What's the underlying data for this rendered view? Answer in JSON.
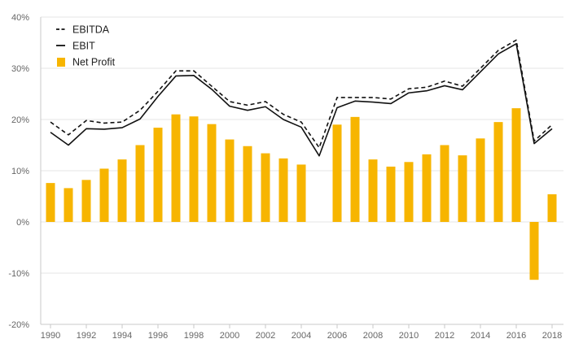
{
  "chart_data": {
    "type": "bar",
    "x": [
      1990,
      1991,
      1992,
      1993,
      1994,
      1995,
      1996,
      1997,
      1998,
      1999,
      2000,
      2001,
      2002,
      2003,
      2004,
      2005,
      2006,
      2007,
      2008,
      2009,
      2010,
      2011,
      2012,
      2013,
      2014,
      2015,
      2016,
      2017,
      2018
    ],
    "x_tick_labels": [
      "1990",
      "1992",
      "1994",
      "1996",
      "1998",
      "2000",
      "2002",
      "2004",
      "2006",
      "2008",
      "2010",
      "2012",
      "2014",
      "2016",
      "2018"
    ],
    "y_tick_labels": [
      "40%",
      "30%",
      "20%",
      "10%",
      "0%",
      "-10%",
      "-20%"
    ],
    "ylim": [
      -20,
      40
    ],
    "y_unit": "%",
    "grid": true,
    "legend_position": "top-left",
    "series": [
      {
        "name": "EBITDA",
        "type": "line",
        "style": "dashed",
        "color": "#111111",
        "values": [
          19.5,
          17.0,
          19.8,
          19.3,
          19.5,
          21.8,
          25.5,
          29.5,
          29.5,
          26.5,
          23.5,
          22.8,
          23.5,
          21.0,
          19.5,
          14.5,
          24.3,
          24.3,
          24.3,
          24.0,
          26.0,
          26.3,
          27.5,
          26.5,
          30.0,
          33.5,
          35.5,
          15.8,
          19.0
        ]
      },
      {
        "name": "EBIT",
        "type": "line",
        "style": "solid",
        "color": "#111111",
        "values": [
          17.5,
          15.0,
          18.2,
          18.1,
          18.4,
          20.1,
          24.5,
          28.5,
          28.6,
          25.9,
          22.6,
          21.8,
          22.5,
          20.0,
          18.5,
          12.9,
          22.3,
          23.6,
          23.4,
          23.1,
          25.2,
          25.6,
          26.6,
          25.8,
          29.3,
          32.8,
          34.8,
          15.3,
          18.2
        ]
      },
      {
        "name": "Net Profit",
        "type": "bar",
        "color": "#f7b500",
        "values": [
          7.6,
          6.6,
          8.2,
          10.4,
          12.2,
          15.0,
          18.4,
          21.0,
          20.6,
          19.1,
          16.1,
          14.8,
          13.4,
          12.4,
          11.2,
          null,
          19.0,
          20.5,
          12.2,
          10.8,
          11.7,
          13.2,
          15.0,
          13.0,
          16.3,
          19.5,
          22.2,
          -11.3,
          5.4
        ]
      }
    ]
  }
}
